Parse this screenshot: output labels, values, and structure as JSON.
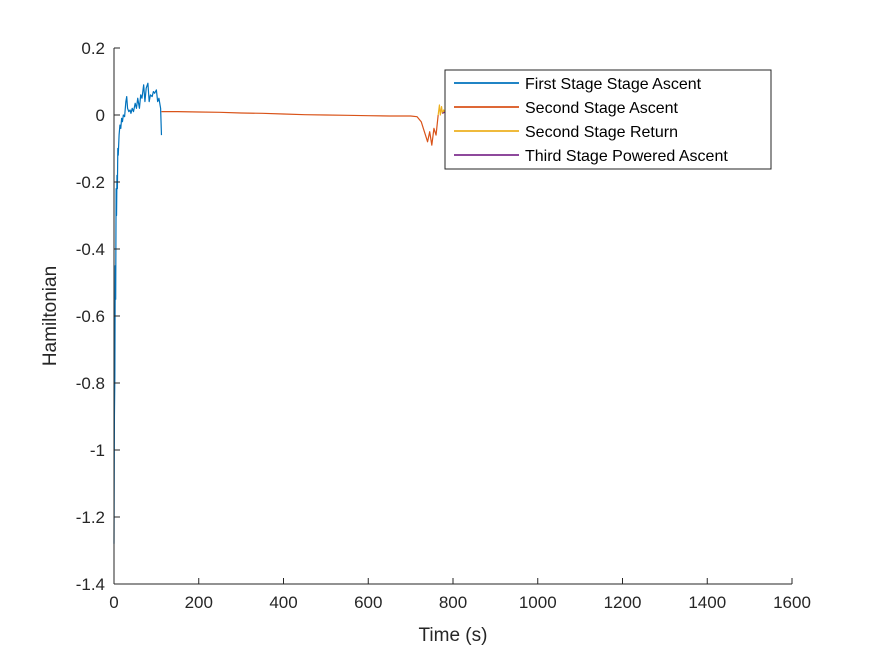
{
  "chart_data": {
    "type": "line",
    "title": "",
    "xlabel": "Time (s)",
    "ylabel": "Hamiltonian",
    "xlim": [
      0,
      1600
    ],
    "ylim": [
      -1.4,
      0.2
    ],
    "xticks": [
      0,
      200,
      400,
      600,
      800,
      1000,
      1200,
      1400,
      1600
    ],
    "xtick_labels": [
      "0",
      "200",
      "400",
      "600",
      "800",
      "1000",
      "1200",
      "1400",
      "1600"
    ],
    "yticks": [
      -1.4,
      -1.2,
      -1,
      -0.8,
      -0.6,
      -0.4,
      -0.2,
      0,
      0.2
    ],
    "ytick_labels": [
      "-1.4",
      "-1.2",
      "-1",
      "-0.8",
      "-0.6",
      "-0.4",
      "-0.2",
      "0",
      "0.2"
    ],
    "grid": false,
    "legend_position": "top-right",
    "series": [
      {
        "name": "First Stage Stage Ascent",
        "color": "#0072BD",
        "x": [
          0,
          1,
          2,
          3,
          4,
          5,
          6,
          7,
          8,
          9,
          10,
          12,
          14,
          16,
          18,
          20,
          22,
          25,
          28,
          30,
          32,
          35,
          38,
          40,
          43,
          46,
          50,
          53,
          56,
          60,
          63,
          66,
          70,
          73,
          76,
          80,
          83,
          86,
          90,
          93,
          96,
          100,
          103,
          106,
          110,
          112
        ],
        "y": [
          -1.28,
          -0.9,
          -0.78,
          -0.45,
          -0.55,
          -0.22,
          -0.3,
          -0.18,
          -0.22,
          -0.1,
          -0.12,
          -0.06,
          -0.03,
          -0.04,
          -0.01,
          -0.02,
          0.0,
          -0.005,
          0.04,
          0.055,
          0.02,
          0.01,
          0.015,
          0.005,
          0.02,
          0.01,
          0.035,
          0.02,
          0.05,
          0.02,
          0.06,
          0.05,
          0.09,
          0.04,
          0.08,
          0.095,
          0.04,
          0.06,
          0.055,
          0.07,
          0.065,
          0.075,
          0.04,
          0.05,
          0.02,
          -0.06
        ]
      },
      {
        "name": "Second Stage Ascent",
        "color": "#D95319",
        "x": [
          112,
          150,
          200,
          250,
          300,
          350,
          400,
          450,
          500,
          550,
          600,
          650,
          700,
          715,
          725,
          730,
          735,
          740,
          745,
          750,
          755,
          760,
          765
        ],
        "y": [
          0.01,
          0.01,
          0.009,
          0.008,
          0.006,
          0.005,
          0.003,
          0.001,
          0.0,
          -0.001,
          -0.002,
          -0.003,
          -0.003,
          -0.005,
          -0.02,
          -0.04,
          -0.06,
          -0.08,
          -0.05,
          -0.09,
          -0.04,
          -0.06,
          0.0
        ]
      },
      {
        "name": "Second Stage Return",
        "color": "#EDB120",
        "x": [
          765,
          768,
          770,
          773,
          775,
          778,
          780
        ],
        "y": [
          0.0,
          0.03,
          0.0,
          0.025,
          0.005,
          0.015,
          0.008
        ]
      },
      {
        "name": "Third Stage Powered Ascent",
        "color": "#7E2F8E",
        "x": [
          775,
          780,
          785,
          790,
          795,
          800
        ],
        "y": [
          0.005,
          0.008,
          0.012,
          0.006,
          0.01,
          0.008
        ]
      }
    ]
  }
}
